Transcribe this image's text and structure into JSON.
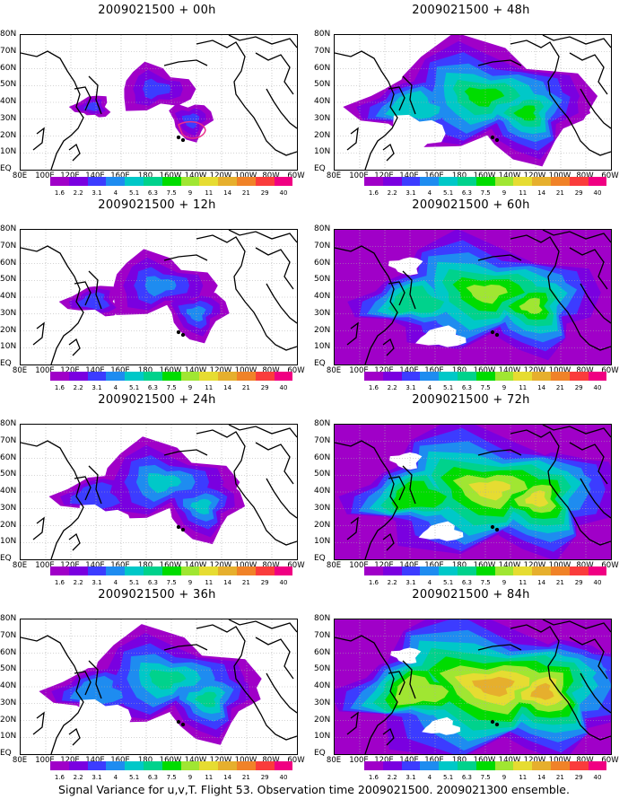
{
  "panels": [
    {
      "title": "2009021500 + 00h",
      "intensity": 0
    },
    {
      "title": "2009021500 + 48h",
      "intensity": 4
    },
    {
      "title": "2009021500 + 12h",
      "intensity": 1
    },
    {
      "title": "2009021500 + 60h",
      "intensity": 5
    },
    {
      "title": "2009021500 + 24h",
      "intensity": 2
    },
    {
      "title": "2009021500 + 72h",
      "intensity": 6
    },
    {
      "title": "2009021500 + 36h",
      "intensity": 3
    },
    {
      "title": "2009021500 + 84h",
      "intensity": 7
    }
  ],
  "lat_labels": [
    "80N",
    "70N",
    "60N",
    "50N",
    "40N",
    "30N",
    "20N",
    "10N",
    "EQ"
  ],
  "lon_labels": [
    "80E",
    "100E",
    "120E",
    "140E",
    "160E",
    "180",
    "160W",
    "140W",
    "120W",
    "100W",
    "80W",
    "60W"
  ],
  "colorbar": {
    "levels": [
      "1.6",
      "2.2",
      "3.1",
      "4",
      "5.1",
      "6.3",
      "7.5",
      "9",
      "11",
      "14",
      "21",
      "29",
      "40"
    ],
    "colors": [
      "#a000c8",
      "#7a00e0",
      "#3c3cff",
      "#1e8cf0",
      "#00c8c8",
      "#00d28c",
      "#00dc00",
      "#a0e632",
      "#e6dc32",
      "#e6af2d",
      "#f08228",
      "#fa3c3c",
      "#f00082"
    ]
  },
  "footer": "Signal Variance for u,v,T. Flight 53. Observation time 2009021500. 2009021300 ensemble."
}
